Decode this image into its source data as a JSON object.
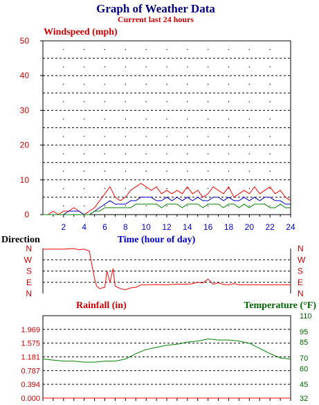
{
  "title": "Graph of Weather Data",
  "subtitle": "Current last 24 hours",
  "colors": {
    "title": "#000080",
    "wind": "#cc0000",
    "direction": "#cc0000",
    "rain": "#cc0000",
    "temp": "#006600",
    "series_red": "#ff0000",
    "series_blue": "#0000cc",
    "series_green": "#008000",
    "axis": "#000000"
  },
  "chart_data": [
    {
      "type": "line",
      "ylabel": "Windspeed (mph)",
      "xlabel": "Time (hour of day)",
      "xlim": [
        0,
        24
      ],
      "ylim": [
        0,
        50
      ],
      "grid": true,
      "x_ticks": [
        "2",
        "4",
        "6",
        "8",
        "10",
        "12",
        "14",
        "16",
        "18",
        "20",
        "22",
        "24"
      ],
      "y_ticks": [
        "0",
        "10",
        "20",
        "30",
        "40",
        "50"
      ],
      "x": [
        0,
        0.5,
        1,
        1.5,
        2,
        2.5,
        3,
        3.5,
        4,
        4.5,
        5,
        5.5,
        6,
        6.5,
        7,
        7.5,
        8,
        8.5,
        9,
        9.5,
        10,
        10.5,
        11,
        11.5,
        12,
        12.5,
        13,
        13.5,
        14,
        14.5,
        15,
        15.5,
        16,
        16.5,
        17,
        17.5,
        18,
        18.5,
        19,
        19.5,
        20,
        20.5,
        21,
        21.5,
        22,
        22.5,
        23,
        23.5,
        24
      ],
      "series": [
        {
          "color": "red",
          "values": [
            0,
            0,
            1,
            0,
            1,
            1,
            2,
            1,
            0,
            1,
            2,
            4,
            6,
            8,
            5,
            4,
            5,
            7,
            8,
            9,
            8,
            7,
            8,
            6,
            7,
            6,
            7,
            6,
            8,
            6,
            7,
            5,
            6,
            8,
            7,
            6,
            8,
            5,
            6,
            7,
            6,
            8,
            6,
            7,
            8,
            6,
            7,
            5,
            4
          ]
        },
        {
          "color": "blue",
          "values": [
            0,
            0,
            0,
            0,
            0,
            1,
            1,
            1,
            0,
            0,
            1,
            2,
            3,
            4,
            3,
            3,
            3,
            4,
            4,
            5,
            5,
            5,
            4,
            4,
            5,
            4,
            5,
            4,
            5,
            4,
            5,
            4,
            4,
            5,
            5,
            4,
            5,
            4,
            4,
            5,
            4,
            5,
            4,
            5,
            5,
            4,
            4,
            3,
            3
          ]
        },
        {
          "color": "green",
          "values": [
            0,
            0,
            0,
            0,
            0,
            0,
            0,
            0,
            0,
            0,
            1,
            1,
            2,
            2,
            2,
            2,
            2,
            2,
            3,
            3,
            3,
            3,
            3,
            2,
            3,
            3,
            3,
            2,
            3,
            3,
            3,
            2,
            3,
            3,
            3,
            2,
            3,
            3,
            2,
            3,
            2,
            3,
            3,
            3,
            2,
            2,
            3,
            2,
            2
          ]
        }
      ]
    },
    {
      "type": "line",
      "ylabel": "Direction",
      "xlim": [
        0,
        24
      ],
      "y_ticks": [
        "N",
        "W",
        "S",
        "E",
        "N"
      ],
      "x": [
        0,
        1,
        2,
        3,
        3.5,
        4,
        4.5,
        5,
        5.2,
        5.5,
        6,
        6.2,
        6.5,
        6.8,
        7,
        7.5,
        8,
        8.5,
        9,
        9.5,
        10,
        11,
        12,
        13,
        14,
        14.5,
        15,
        15.5,
        16,
        16.5,
        17,
        17.5,
        18,
        18.5,
        19,
        20,
        21,
        22,
        23,
        24
      ],
      "values": [
        355,
        355,
        355,
        360,
        350,
        355,
        340,
        120,
        60,
        40,
        50,
        180,
        90,
        200,
        60,
        40,
        30,
        45,
        50,
        70,
        70,
        72,
        70,
        75,
        75,
        78,
        90,
        85,
        115,
        75,
        85,
        72,
        70,
        80,
        70,
        70,
        70,
        70,
        70,
        70
      ]
    },
    {
      "type": "line",
      "ylabel": "Rainfall (in)",
      "y2label": "Temperature (°F)",
      "xlim": [
        0,
        24
      ],
      "ylim": [
        0,
        2.362
      ],
      "y_ticks": [
        "0.000",
        "0.394",
        "0.787",
        "1.181",
        "1.575",
        "1.969"
      ],
      "y2lim": [
        32,
        110
      ],
      "y2_ticks": [
        "32",
        "45",
        "60",
        "70",
        "85",
        "95",
        "110"
      ],
      "x": [
        0,
        1,
        2,
        3,
        4,
        5,
        6,
        7,
        8,
        9,
        10,
        11,
        12,
        13,
        14,
        15,
        16,
        17,
        18,
        19,
        20,
        21,
        22,
        23,
        24
      ],
      "rain": [
        0,
        0,
        0,
        0,
        0,
        0,
        0,
        0,
        0,
        0,
        0,
        0,
        0,
        0,
        0,
        0,
        0,
        0,
        0,
        0,
        0,
        0,
        0,
        0,
        0
      ],
      "temp": [
        69,
        68,
        67,
        67,
        66,
        66,
        67,
        67,
        69,
        74,
        78,
        80,
        82,
        83,
        85,
        86,
        88,
        87,
        87,
        86,
        84,
        79,
        74,
        70,
        69
      ]
    }
  ]
}
